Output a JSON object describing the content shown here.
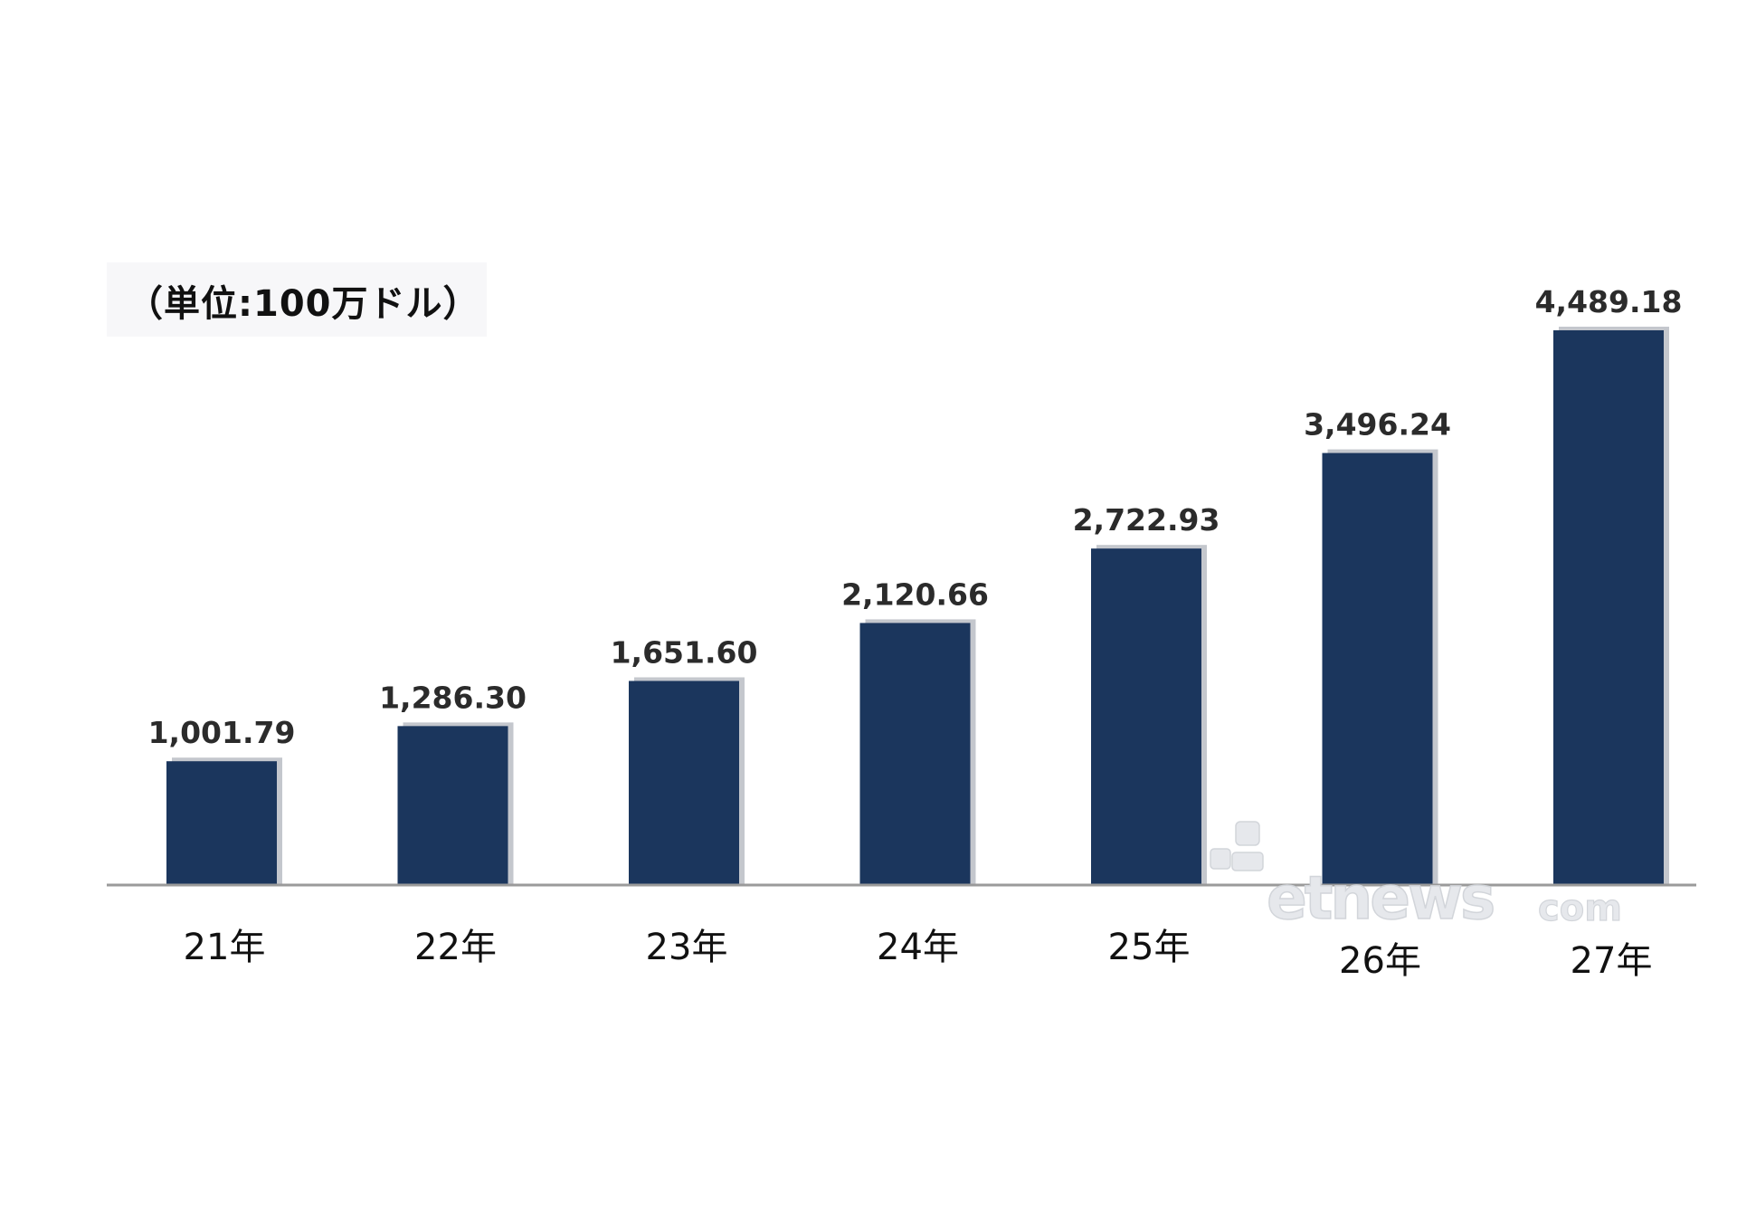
{
  "chart_data": {
    "type": "bar",
    "unit_label": "（単位:100万ドル）",
    "categories": [
      "21年",
      "22年",
      "23年",
      "24年",
      "25年",
      "26年",
      "27年"
    ],
    "values": [
      1001.79,
      1286.3,
      1651.6,
      2120.66,
      2722.93,
      3496.24,
      4489.18
    ],
    "value_labels": [
      "1,001.79",
      "1,286.30",
      "1,651.60",
      "2,120.66",
      "2,722.93",
      "3,496.24",
      "4,489.18"
    ],
    "ylim": [
      0,
      4489.18
    ],
    "grid": false,
    "legend": "none",
    "colors": {
      "bar": "#1b365d",
      "axis": "#9a9a9a"
    }
  },
  "watermark": {
    "main": "etnews",
    "sub": "com",
    "icon_name": "etnews-logo-icon"
  }
}
